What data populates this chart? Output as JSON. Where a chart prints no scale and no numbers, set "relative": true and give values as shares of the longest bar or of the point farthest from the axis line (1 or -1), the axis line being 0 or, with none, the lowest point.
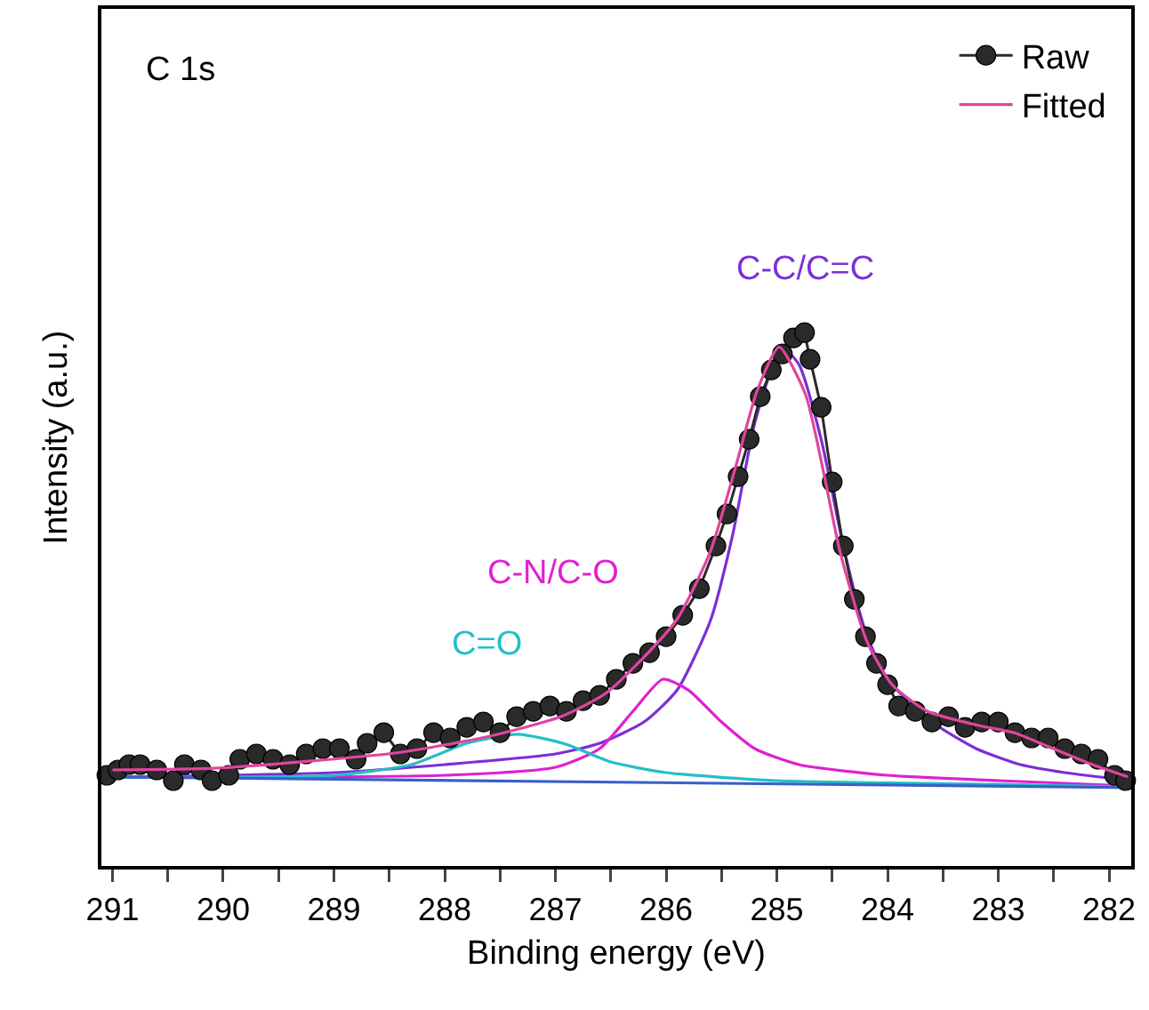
{
  "chart_data": {
    "type": "line",
    "relative": true,
    "xlabel": "Binding energy (eV)",
    "ylabel": "Intensity (a.u.)",
    "xlim": [
      291.1,
      281.8
    ],
    "xticks": [
      291,
      {
        "value": 290.5,
        "label": null
      },
      290,
      {
        "value": 289.5,
        "label": null
      },
      289,
      {
        "value": 288.5,
        "label": null
      },
      288,
      {
        "value": 287.5,
        "label": null
      },
      287,
      {
        "value": 286.5,
        "label": null
      },
      286,
      {
        "value": 285.5,
        "label": null
      },
      285,
      {
        "value": 284.5,
        "label": null
      },
      284,
      {
        "value": 283.5,
        "label": null
      },
      283,
      {
        "value": 282.5,
        "label": null
      },
      282
    ],
    "tick_labels": "x",
    "grid": false,
    "legend": "top right",
    "annotations": [
      "C 1s"
    ],
    "series": [
      {
        "name": "Raw",
        "marker": "circle",
        "color": "#2a2a2a",
        "x": [
          291.05,
          290.95,
          290.85,
          290.75,
          290.6,
          290.45,
          290.35,
          290.2,
          290.1,
          289.95,
          289.85,
          289.7,
          289.55,
          289.4,
          289.25,
          289.1,
          288.95,
          288.8,
          288.7,
          288.55,
          288.4,
          288.25,
          288.1,
          287.95,
          287.8,
          287.65,
          287.5,
          287.35,
          287.2,
          287.05,
          286.9,
          286.75,
          286.6,
          286.45,
          286.3,
          286.15,
          286.0,
          285.85,
          285.7,
          285.55,
          285.45,
          285.35,
          285.25,
          285.15,
          285.05,
          284.95,
          284.85,
          284.75,
          284.7,
          284.6,
          284.5,
          284.4,
          284.3,
          284.2,
          284.1,
          284.0,
          283.9,
          283.75,
          283.6,
          283.45,
          283.3,
          283.15,
          283.0,
          282.85,
          282.7,
          282.55,
          282.4,
          282.25,
          282.1,
          281.95,
          281.85
        ],
        "values": [
          0.17,
          0.18,
          0.19,
          0.19,
          0.18,
          0.16,
          0.19,
          0.18,
          0.16,
          0.17,
          0.2,
          0.21,
          0.2,
          0.19,
          0.21,
          0.22,
          0.22,
          0.2,
          0.23,
          0.25,
          0.21,
          0.22,
          0.25,
          0.24,
          0.26,
          0.27,
          0.25,
          0.28,
          0.29,
          0.3,
          0.29,
          0.31,
          0.32,
          0.35,
          0.38,
          0.4,
          0.43,
          0.47,
          0.52,
          0.6,
          0.66,
          0.73,
          0.8,
          0.88,
          0.93,
          0.96,
          0.99,
          1.0,
          0.95,
          0.86,
          0.72,
          0.6,
          0.5,
          0.43,
          0.38,
          0.34,
          0.3,
          0.29,
          0.27,
          0.28,
          0.26,
          0.27,
          0.27,
          0.25,
          0.24,
          0.24,
          0.22,
          0.21,
          0.2,
          0.17,
          0.16
        ]
      },
      {
        "name": "Fitted",
        "marker": "none",
        "color": "#e0459e",
        "x": [
          291,
          290.1,
          289.2,
          288.4,
          287.6,
          286.95,
          286.55,
          286.24,
          285.9,
          285.6,
          285.37,
          285.18,
          284.98,
          284.74,
          284.58,
          284.43,
          284.19,
          283.96,
          283.64,
          283.17,
          282.86,
          282.54,
          282.15,
          281.83
        ],
        "values": [
          0.18,
          0.183,
          0.197,
          0.213,
          0.243,
          0.28,
          0.323,
          0.383,
          0.463,
          0.59,
          0.75,
          0.89,
          0.973,
          0.883,
          0.74,
          0.59,
          0.423,
          0.34,
          0.29,
          0.263,
          0.25,
          0.223,
          0.19,
          0.167
        ]
      },
      {
        "name": "C-C/C=C",
        "marker": "none",
        "color": "#7b2fd6",
        "x": [
          291,
          289,
          288,
          287,
          286.6,
          286.2,
          285.9,
          285.6,
          285.4,
          285.2,
          285.0,
          284.95,
          284.8,
          284.6,
          284.4,
          284.2,
          284.0,
          283.6,
          283.2,
          282.8,
          282.4,
          281.8
        ],
        "values": [
          0.167,
          0.175,
          0.19,
          0.21,
          0.23,
          0.27,
          0.33,
          0.46,
          0.62,
          0.83,
          0.96,
          0.973,
          0.94,
          0.8,
          0.6,
          0.44,
          0.35,
          0.27,
          0.22,
          0.19,
          0.175,
          0.16
        ]
      },
      {
        "name": "C-N/C-O",
        "marker": "none",
        "color": "#e020d0",
        "x": [
          291,
          288,
          287,
          286.6,
          286.3,
          286.03,
          285.8,
          285.5,
          285.2,
          284.8,
          284,
          283,
          281.8
        ],
        "values": [
          0.167,
          0.17,
          0.185,
          0.22,
          0.29,
          0.35,
          0.33,
          0.27,
          0.22,
          0.19,
          0.17,
          0.16,
          0.15
        ]
      },
      {
        "name": "C=O",
        "marker": "none",
        "color": "#22bfc8",
        "x": [
          291,
          289,
          288.3,
          287.8,
          287.34,
          286.9,
          286.5,
          286,
          285,
          283,
          281.8
        ],
        "values": [
          0.167,
          0.17,
          0.19,
          0.23,
          0.247,
          0.228,
          0.195,
          0.175,
          0.16,
          0.153,
          0.148
        ]
      },
      {
        "marker": "none",
        "color": "#3a5fc8",
        "x": [
          291,
          281.8
        ],
        "values": [
          0.167,
          0.147
        ]
      }
    ]
  }
}
